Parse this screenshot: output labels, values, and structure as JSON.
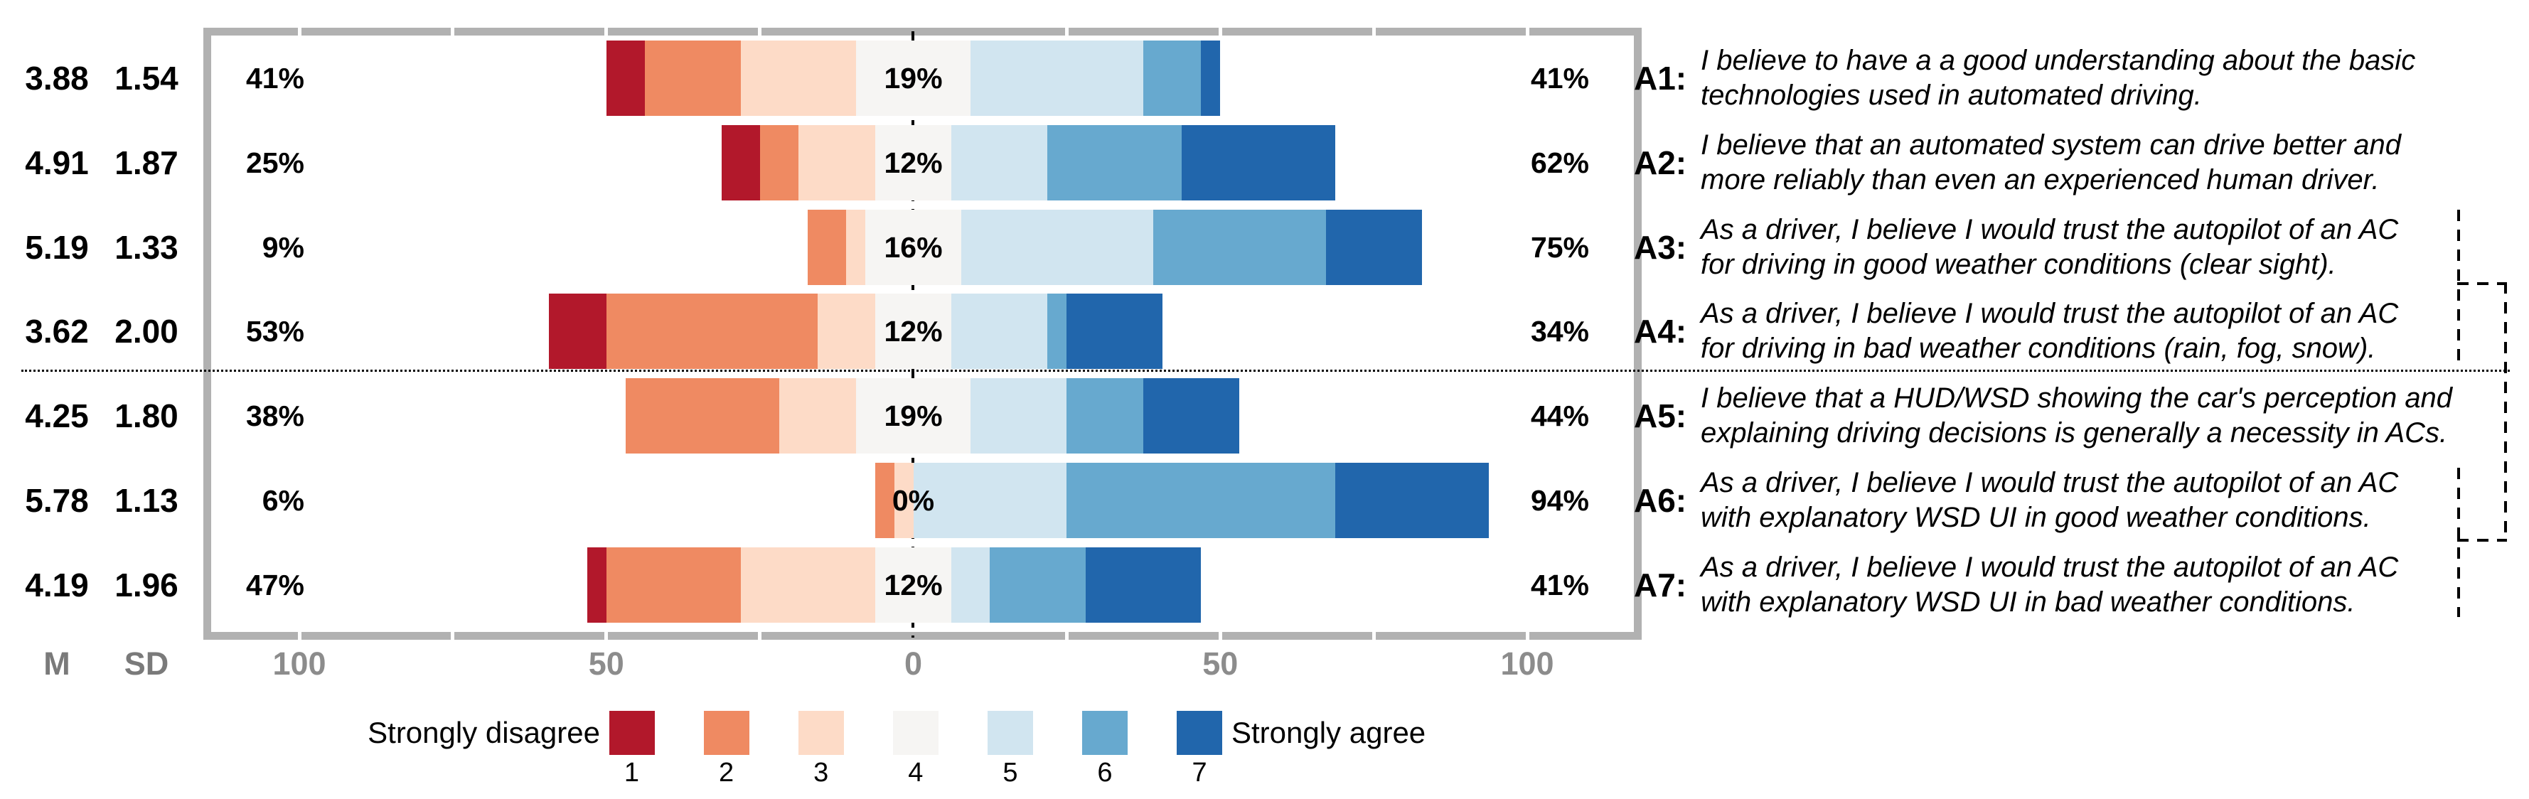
{
  "figure": {
    "columns": {
      "m_header": "M",
      "sd_header": "SD"
    },
    "axis": {
      "tick_labels": [
        "100",
        "50",
        "0",
        "50",
        "100"
      ]
    },
    "legend": {
      "left_label": "Strongly disagree",
      "right_label": "Strongly agree",
      "items": [
        {
          "value": "1",
          "color": "#b2182b"
        },
        {
          "value": "2",
          "color": "#ef8a62"
        },
        {
          "value": "3",
          "color": "#fddbc7"
        },
        {
          "value": "4",
          "color": "#f6f5f3"
        },
        {
          "value": "5",
          "color": "#d1e5f0"
        },
        {
          "value": "6",
          "color": "#67a9cf"
        },
        {
          "value": "7",
          "color": "#2166ac"
        }
      ]
    },
    "rows": [
      {
        "label": "A1:",
        "m": "3.88",
        "sd": "1.54",
        "left_pct": "41%",
        "mid_pct": "19%",
        "right_pct": "41%",
        "statement": [
          "I believe to have a a good understanding about the basic",
          "technologies used in automated driving."
        ],
        "values": [
          6.25,
          15.625,
          18.75,
          18.75,
          28.125,
          9.375,
          3.125
        ]
      },
      {
        "label": "A2:",
        "m": "4.91",
        "sd": "1.87",
        "left_pct": "25%",
        "mid_pct": "12%",
        "right_pct": "62%",
        "statement": [
          "I believe that an automated system can drive better and",
          "more reliably than even an experienced human driver."
        ],
        "values": [
          6.25,
          6.25,
          12.5,
          12.5,
          15.625,
          21.875,
          25
        ]
      },
      {
        "label": "A3:",
        "m": "5.19",
        "sd": "1.33",
        "left_pct": "9%",
        "mid_pct": "16%",
        "right_pct": "75%",
        "statement": [
          "As a driver, I believe I would trust the autopilot of an AC",
          "for driving in good weather conditions (clear sight)."
        ],
        "values": [
          0,
          6.25,
          3.125,
          15.625,
          31.25,
          28.125,
          15.625
        ]
      },
      {
        "label": "A4:",
        "m": "3.62",
        "sd": "2.00",
        "left_pct": "53%",
        "mid_pct": "12%",
        "right_pct": "34%",
        "statement": [
          "As a driver, I believe I would trust the autopilot of an AC",
          "for driving in bad weather conditions (rain, fog, snow)."
        ],
        "values": [
          9.375,
          34.375,
          9.375,
          12.5,
          15.625,
          3.125,
          15.625
        ]
      },
      {
        "label": "A5:",
        "m": "4.25",
        "sd": "1.80",
        "left_pct": "38%",
        "mid_pct": "19%",
        "right_pct": "44%",
        "statement": [
          "I believe that a HUD/WSD showing the car's perception and",
          "explaining driving decisions is generally a necessity in ACs."
        ],
        "values": [
          0,
          25,
          12.5,
          18.75,
          15.625,
          12.5,
          15.625
        ]
      },
      {
        "label": "A6:",
        "m": "5.78",
        "sd": "1.13",
        "left_pct": "6%",
        "mid_pct": "0%",
        "right_pct": "94%",
        "statement": [
          "As a driver, I believe I would trust the autopilot of an AC",
          "with explanatory WSD UI in good weather conditions."
        ],
        "values": [
          0,
          3.125,
          3.125,
          0,
          25,
          43.75,
          25
        ]
      },
      {
        "label": "A7:",
        "m": "4.19",
        "sd": "1.96",
        "left_pct": "47%",
        "mid_pct": "12%",
        "right_pct": "41%",
        "statement": [
          "As a driver, I believe I would trust the autopilot of an AC",
          "with explanatory WSD UI in bad weather conditions."
        ],
        "values": [
          3.125,
          21.875,
          21.875,
          12.5,
          6.25,
          15.625,
          18.75
        ]
      }
    ]
  },
  "chart_data": {
    "type": "bar",
    "subtype": "diverging-stacked-likert",
    "categories": [
      "A1",
      "A2",
      "A3",
      "A4",
      "A5",
      "A6",
      "A7"
    ],
    "series": [
      {
        "name": "1",
        "color": "#b2182b",
        "values": [
          6.25,
          6.25,
          0,
          9.375,
          0,
          0,
          3.125
        ]
      },
      {
        "name": "2",
        "color": "#ef8a62",
        "values": [
          15.625,
          6.25,
          6.25,
          34.375,
          25,
          3.125,
          21.875
        ]
      },
      {
        "name": "3",
        "color": "#fddbc7",
        "values": [
          18.75,
          12.5,
          3.125,
          9.375,
          12.5,
          3.125,
          21.875
        ]
      },
      {
        "name": "4",
        "color": "#f6f5f3",
        "values": [
          18.75,
          12.5,
          15.625,
          12.5,
          18.75,
          0,
          12.5
        ]
      },
      {
        "name": "5",
        "color": "#d1e5f0",
        "values": [
          28.125,
          15.625,
          31.25,
          15.625,
          15.625,
          25,
          6.25
        ]
      },
      {
        "name": "6",
        "color": "#67a9cf",
        "values": [
          9.375,
          21.875,
          28.125,
          3.125,
          12.5,
          43.75,
          15.625
        ]
      },
      {
        "name": "7",
        "color": "#2166ac",
        "values": [
          3.125,
          25,
          15.625,
          15.625,
          15.625,
          25,
          18.75
        ]
      }
    ],
    "mean": [
      3.88,
      4.91,
      5.19,
      3.62,
      4.25,
      5.78,
      4.19
    ],
    "sd": [
      1.54,
      1.87,
      1.33,
      2.0,
      1.8,
      1.13,
      1.96
    ],
    "pct_disagree": [
      41,
      25,
      9,
      53,
      38,
      6,
      47
    ],
    "pct_neutral": [
      19,
      12,
      16,
      12,
      19,
      0,
      12
    ],
    "pct_agree": [
      41,
      62,
      75,
      34,
      44,
      94,
      41
    ],
    "statements": [
      "I believe to have a a good understanding about the basic technologies used in automated driving.",
      "I believe that an automated system can drive better and more reliably than even an experienced human driver.",
      "As a driver, I believe I would trust the autopilot of an AC for driving in good weather conditions (clear sight).",
      "As a driver, I believe I would trust the autopilot of an AC for driving in bad weather conditions (rain, fog, snow).",
      "I believe that a HUD/WSD showing the car's perception and explaining driving decisions is generally a necessity in ACs.",
      "As a driver, I believe I would trust the autopilot of an AC with explanatory WSD UI in good weather conditions.",
      "As a driver, I believe I would trust the autopilot of an AC with explanatory WSD UI in bad weather conditions."
    ],
    "xlabel": "",
    "ylabel": "",
    "x_tick_labels": [
      "100",
      "50",
      "0",
      "50",
      "100"
    ],
    "x_tick_values": [
      -100,
      -50,
      0,
      50,
      100
    ],
    "xlim": [
      -116,
      118
    ],
    "grid": false,
    "legend_position": "bottom",
    "legend_left": "Strongly disagree",
    "legend_right": "Strongly agree",
    "scale_values": [
      "1",
      "2",
      "3",
      "4",
      "5",
      "6",
      "7"
    ],
    "divider_after_category": "A4",
    "bracket_groups": [
      [
        "A3",
        "A4"
      ],
      [
        "A6",
        "A7"
      ]
    ]
  }
}
